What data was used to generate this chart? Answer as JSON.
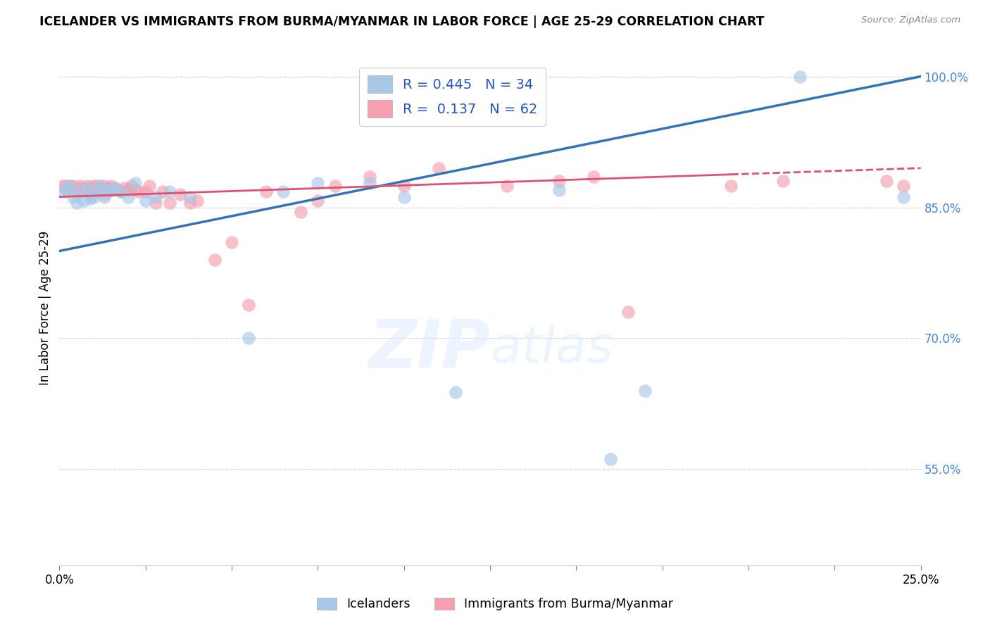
{
  "title": "ICELANDER VS IMMIGRANTS FROM BURMA/MYANMAR IN LABOR FORCE | AGE 25-29 CORRELATION CHART",
  "source": "Source: ZipAtlas.com",
  "ylabel": "In Labor Force | Age 25-29",
  "ytick_values": [
    0.55,
    0.7,
    0.85,
    1.0
  ],
  "xlim": [
    0.0,
    0.25
  ],
  "ylim": [
    0.44,
    1.03
  ],
  "legend_blue_r": "R = 0.445",
  "legend_blue_n": "N = 34",
  "legend_pink_r": "R =  0.137",
  "legend_pink_n": "N = 62",
  "legend_blue_label": "Icelanders",
  "legend_pink_label": "Immigrants from Burma/Myanmar",
  "watermark_zip": "ZIP",
  "watermark_atlas": "atlas",
  "blue_color": "#a8c8e8",
  "pink_color": "#f4a0b0",
  "trend_blue_color": "#3374b8",
  "trend_pink_color": "#e05070",
  "icelander_x": [
    0.001,
    0.002,
    0.003,
    0.004,
    0.005,
    0.006,
    0.007,
    0.008,
    0.009,
    0.01,
    0.011,
    0.012,
    0.013,
    0.014,
    0.015,
    0.016,
    0.018,
    0.02,
    0.022,
    0.025,
    0.028,
    0.032,
    0.038,
    0.055,
    0.065,
    0.075,
    0.09,
    0.1,
    0.115,
    0.145,
    0.16,
    0.17,
    0.215,
    0.245
  ],
  "icelander_y": [
    0.868,
    0.872,
    0.875,
    0.862,
    0.855,
    0.868,
    0.858,
    0.872,
    0.86,
    0.862,
    0.87,
    0.875,
    0.862,
    0.87,
    0.87,
    0.872,
    0.868,
    0.862,
    0.878,
    0.858,
    0.862,
    0.868,
    0.862,
    0.7,
    0.868,
    0.878,
    0.878,
    0.862,
    0.638,
    0.87,
    0.562,
    0.64,
    1.0,
    0.862
  ],
  "burma_x": [
    0.001,
    0.002,
    0.002,
    0.003,
    0.004,
    0.004,
    0.005,
    0.005,
    0.006,
    0.006,
    0.007,
    0.007,
    0.008,
    0.008,
    0.009,
    0.009,
    0.01,
    0.01,
    0.011,
    0.011,
    0.012,
    0.012,
    0.013,
    0.013,
    0.014,
    0.014,
    0.015,
    0.015,
    0.016,
    0.017,
    0.018,
    0.019,
    0.02,
    0.021,
    0.022,
    0.023,
    0.025,
    0.026,
    0.028,
    0.03,
    0.032,
    0.035,
    0.038,
    0.04,
    0.045,
    0.05,
    0.055,
    0.06,
    0.07,
    0.075,
    0.08,
    0.09,
    0.1,
    0.11,
    0.13,
    0.145,
    0.155,
    0.165,
    0.195,
    0.21,
    0.24,
    0.245
  ],
  "burma_y": [
    0.875,
    0.875,
    0.87,
    0.875,
    0.875,
    0.87,
    0.872,
    0.868,
    0.875,
    0.87,
    0.872,
    0.868,
    0.875,
    0.87,
    0.872,
    0.865,
    0.875,
    0.87,
    0.875,
    0.868,
    0.872,
    0.87,
    0.875,
    0.865,
    0.872,
    0.868,
    0.875,
    0.87,
    0.872,
    0.87,
    0.868,
    0.872,
    0.87,
    0.875,
    0.87,
    0.868,
    0.868,
    0.875,
    0.855,
    0.868,
    0.855,
    0.865,
    0.855,
    0.858,
    0.79,
    0.81,
    0.738,
    0.868,
    0.845,
    0.858,
    0.875,
    0.885,
    0.875,
    0.895,
    0.875,
    0.88,
    0.885,
    0.73,
    0.875,
    0.88,
    0.88,
    0.875
  ],
  "trend_blue_x0": 0.0,
  "trend_blue_y0": 0.8,
  "trend_blue_x1": 0.25,
  "trend_blue_y1": 1.0,
  "trend_pink_x0": 0.0,
  "trend_pink_y0": 0.862,
  "trend_pink_x1": 0.25,
  "trend_pink_y1": 0.895,
  "trend_pink_dash_start": 0.195
}
